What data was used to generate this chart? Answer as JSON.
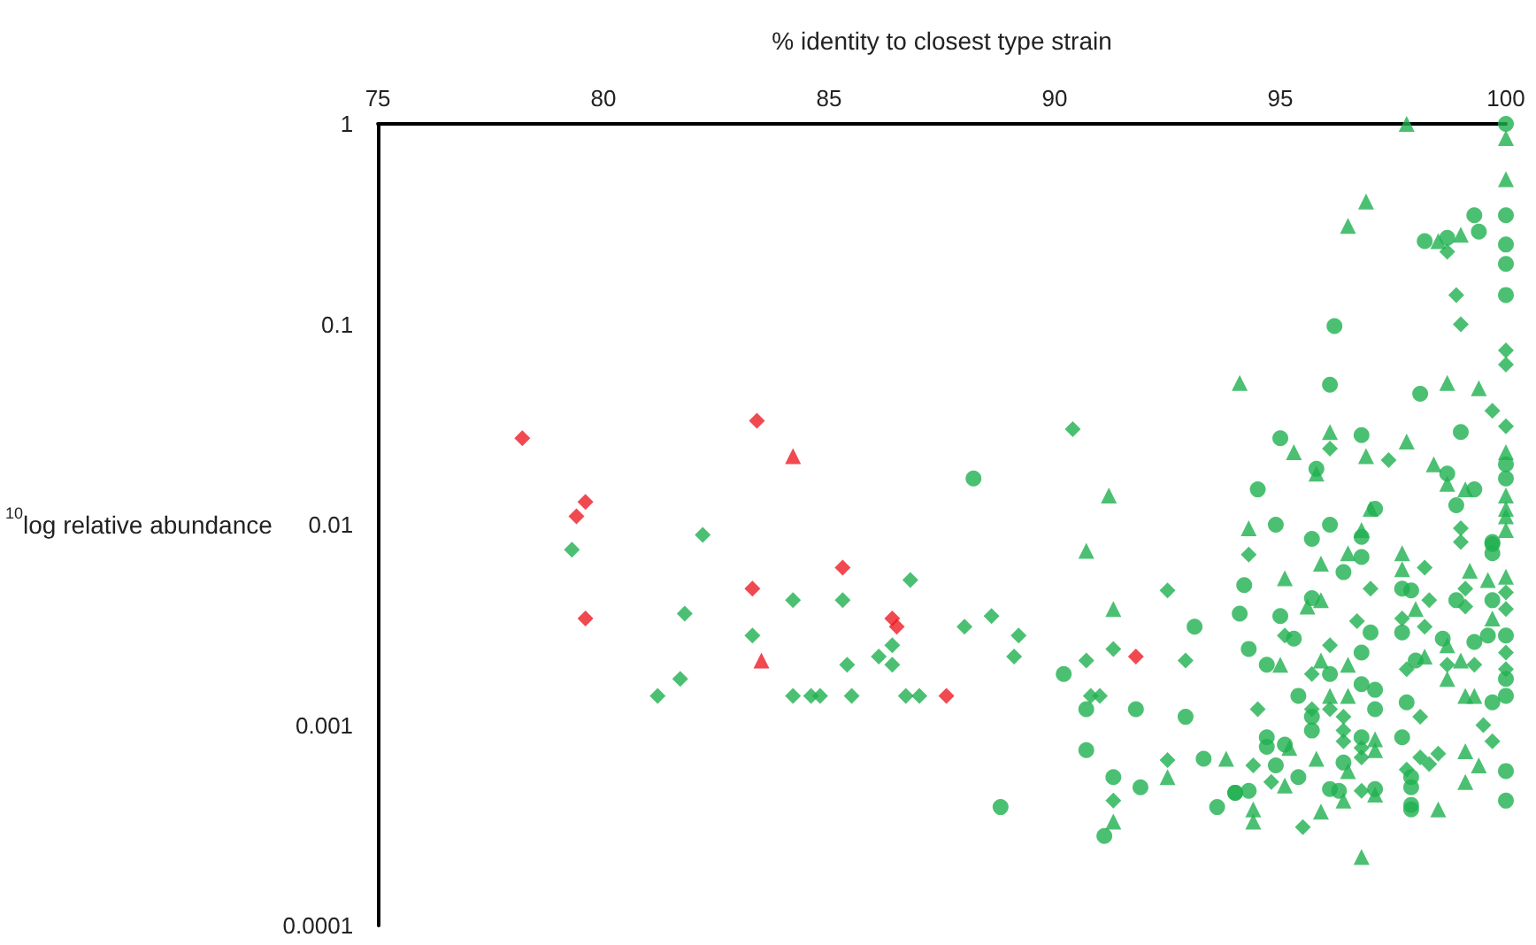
{
  "chart_data": {
    "type": "scatter",
    "xlabel": "% identity to closest type strain",
    "ylabel": "$^{10}$log relative abundance",
    "xlim": [
      75,
      100
    ],
    "xticks": [
      75,
      80,
      85,
      90,
      95,
      100
    ],
    "ylim": [
      0.0001,
      1
    ],
    "yticks": [
      0.0001,
      0.001,
      0.01,
      0.1,
      1
    ],
    "log": "y",
    "grid": false,
    "series": [
      {
        "color": "#1fb04f",
        "marker": "circle",
        "x": [
          88.2,
          93.1,
          90.2,
          90.7,
          91.8,
          92.9,
          90.7,
          91.3,
          91.9,
          93.3,
          93.6,
          94.0,
          88.8,
          91.1,
          100,
          100,
          100,
          100,
          100,
          99.3,
          99.4,
          98.2,
          98.7,
          96.2,
          96.1,
          98.1,
          95.0,
          96.8,
          99.0,
          98.7,
          95.8,
          94.5,
          94.9,
          95.7,
          96.1,
          96.8,
          97.1,
          99.3,
          98.9,
          99.7,
          100,
          100,
          94.2,
          94.1,
          95.0,
          96.4,
          96.8,
          95.7,
          97.0,
          95.3,
          94.3,
          94.7,
          96.8,
          96.1,
          95.4,
          96.8,
          97.1,
          97.1,
          95.7,
          95.7,
          96.8,
          97.7,
          94.7,
          94.7,
          95.1,
          94.9,
          95.4,
          94.0,
          94.3,
          96.4,
          96.1,
          96.3,
          97.1,
          97.7,
          97.9,
          97.7,
          98.6,
          98.9,
          99.7,
          99.7,
          99.7,
          99.3,
          99.6,
          98.0,
          99.7,
          97.8,
          97.9,
          97.9,
          97.9,
          97.9,
          100,
          100,
          100,
          100,
          100
        ],
        "values": [
          0.017,
          0.0031,
          0.0018,
          0.0012,
          0.0012,
          0.0011,
          0.00075,
          0.00055,
          0.00049,
          0.00068,
          0.00039,
          0.00046,
          0.00039,
          0.00028,
          1,
          0.35,
          0.25,
          0.2,
          0.14,
          0.35,
          0.29,
          0.26,
          0.27,
          0.098,
          0.05,
          0.045,
          0.027,
          0.028,
          0.029,
          0.018,
          0.019,
          0.015,
          0.01,
          0.0085,
          0.01,
          0.0087,
          0.012,
          0.015,
          0.0125,
          0.0082,
          0.02,
          0.017,
          0.005,
          0.0036,
          0.0035,
          0.0058,
          0.0069,
          0.0043,
          0.0029,
          0.0027,
          0.0024,
          0.002,
          0.0023,
          0.0018,
          0.0014,
          0.0016,
          0.0015,
          0.0012,
          0.0011,
          0.00094,
          0.00087,
          0.00087,
          0.00087,
          0.00078,
          0.0008,
          0.00063,
          0.00055,
          0.00046,
          0.00047,
          0.00065,
          0.00048,
          0.00047,
          0.00048,
          0.0048,
          0.0047,
          0.0029,
          0.0027,
          0.0042,
          0.008,
          0.0072,
          0.0042,
          0.0026,
          0.0028,
          0.0021,
          0.0013,
          0.0013,
          0.00055,
          0.00049,
          0.0004,
          0.00038,
          0.00059,
          0.00042,
          0.0028,
          0.0017,
          0.0014
        ]
      },
      {
        "color": "#1fb04f",
        "marker": "triangle",
        "x": [
          91.2,
          90.7,
          91.3,
          92.5,
          93.8,
          91.3,
          97.8,
          100,
          100,
          96.9,
          96.5,
          99.0,
          98.5,
          94.1,
          98.7,
          99.4,
          95.3,
          96.1,
          96.9,
          97.8,
          98.4,
          98.7,
          95.8,
          94.3,
          96.8,
          97.0,
          99.1,
          100,
          100,
          100,
          100,
          100,
          95.1,
          95.9,
          96.5,
          95.6,
          95.9,
          95.0,
          96.5,
          95.9,
          96.1,
          96.5,
          97.1,
          97.1,
          95.2,
          95.1,
          95.8,
          96.5,
          96.4,
          97.1,
          94.4,
          94.4,
          95.9,
          96.8,
          97.7,
          97.7,
          98.0,
          98.7,
          99.2,
          99.6,
          99.7,
          98.2,
          98.7,
          99.0,
          99.1,
          99.3,
          99.1,
          99.4,
          99.1,
          98.5,
          100
        ],
        "values": [
          0.014,
          0.0074,
          0.0038,
          0.00055,
          0.00068,
          0.00033,
          1,
          0.85,
          0.53,
          0.41,
          0.31,
          0.28,
          0.26,
          0.051,
          0.051,
          0.048,
          0.023,
          0.029,
          0.022,
          0.026,
          0.02,
          0.016,
          0.018,
          0.0096,
          0.0094,
          0.012,
          0.015,
          0.023,
          0.014,
          0.012,
          0.011,
          0.0094,
          0.0054,
          0.0064,
          0.0072,
          0.0039,
          0.0042,
          0.002,
          0.002,
          0.0021,
          0.0014,
          0.0014,
          0.00085,
          0.00075,
          0.00077,
          0.0005,
          0.00068,
          0.00059,
          0.00042,
          0.00045,
          0.00038,
          0.00033,
          0.00037,
          0.00022,
          0.0072,
          0.006,
          0.0038,
          0.0025,
          0.0059,
          0.0053,
          0.0034,
          0.0022,
          0.0017,
          0.0021,
          0.0014,
          0.0014,
          0.00074,
          0.00063,
          0.00052,
          0.00038,
          0.0055
        ]
      },
      {
        "color": "#1fb04f",
        "marker": "diamond",
        "x": [
          79.3,
          82.2,
          81.8,
          81.2,
          81.7,
          83.3,
          84.2,
          84.2,
          84.6,
          84.8,
          85.3,
          85.4,
          85.5,
          86.8,
          86.1,
          86.4,
          86.4,
          86.7,
          87.0,
          90.4,
          92.5,
          88.0,
          88.6,
          89.2,
          89.1,
          90.7,
          91.3,
          92.9,
          90.8,
          91.0,
          92.5,
          91.3,
          100,
          100,
          98.7,
          98.9,
          99.0,
          99.7,
          100,
          96.1,
          97.4,
          99.0,
          99.0,
          94.3,
          97.0,
          96.7,
          95.1,
          96.1,
          95.7,
          95.7,
          96.1,
          94.5,
          96.4,
          96.4,
          96.4,
          96.8,
          96.8,
          94.4,
          94.8,
          96.8,
          95.5,
          98.2,
          98.3,
          97.7,
          98.2,
          99.1,
          99.1,
          97.8,
          98.7,
          99.3,
          98.1,
          99.5,
          99.7,
          98.1,
          98.3,
          98.5,
          97.8,
          100,
          100,
          100,
          100
        ],
        "values": [
          0.0075,
          0.0089,
          0.0036,
          0.0014,
          0.0017,
          0.0028,
          0.0042,
          0.0014,
          0.0014,
          0.0014,
          0.0042,
          0.002,
          0.0014,
          0.0053,
          0.0022,
          0.0025,
          0.002,
          0.0014,
          0.0014,
          0.03,
          0.0047,
          0.0031,
          0.0035,
          0.0028,
          0.0022,
          0.0021,
          0.0024,
          0.0021,
          0.0014,
          0.0014,
          0.00067,
          0.00042,
          0.074,
          0.063,
          0.23,
          0.14,
          0.1,
          0.037,
          0.031,
          0.024,
          0.021,
          0.0096,
          0.0082,
          0.0071,
          0.0048,
          0.0033,
          0.0028,
          0.0025,
          0.0018,
          0.0012,
          0.0012,
          0.0012,
          0.0011,
          0.00094,
          0.00083,
          0.00077,
          0.00069,
          0.00063,
          0.00052,
          0.00047,
          0.00031,
          0.0061,
          0.0042,
          0.0034,
          0.0031,
          0.0039,
          0.0048,
          0.0019,
          0.002,
          0.002,
          0.0011,
          0.001,
          0.00083,
          0.00069,
          0.00064,
          0.00072,
          0.0006,
          0.0046,
          0.0038,
          0.0023,
          0.0019
        ]
      },
      {
        "color": "#ee1c24",
        "marker": "diamond",
        "x": [
          78.2,
          79.6,
          79.4,
          79.6,
          83.4,
          83.3,
          85.3,
          86.4,
          86.5,
          87.6,
          91.8
        ],
        "values": [
          0.027,
          0.013,
          0.011,
          0.0034,
          0.033,
          0.0048,
          0.0061,
          0.0034,
          0.0031,
          0.0014,
          0.0022
        ]
      },
      {
        "color": "#ee1c24",
        "marker": "triangle",
        "x": [
          84.2,
          83.5
        ],
        "values": [
          0.022,
          0.0021
        ]
      }
    ]
  }
}
